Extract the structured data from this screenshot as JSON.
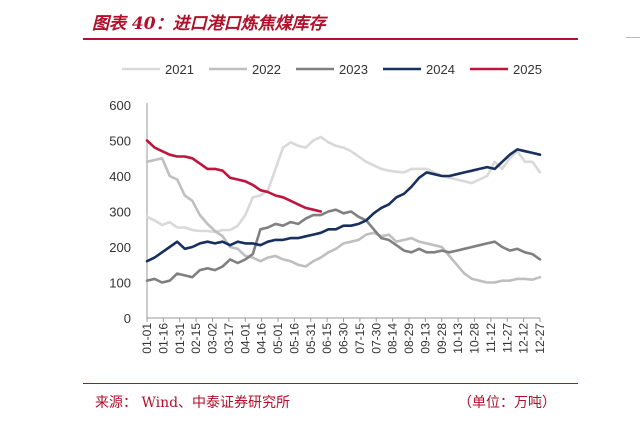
{
  "header": {
    "title": "图表 40：进口港口炼焦煤库存"
  },
  "footer": {
    "source": "来源：   Wind、中泰证券研究所",
    "unit": "（单位：万吨）"
  },
  "chart_data": {
    "type": "line",
    "ylim": [
      0,
      600
    ],
    "yticks": [
      0,
      100,
      200,
      300,
      400,
      500,
      600
    ],
    "xticks": [
      "01-01",
      "01-16",
      "01-31",
      "02-15",
      "03-02",
      "03-17",
      "04-01",
      "04-16",
      "05-01",
      "05-16",
      "05-31",
      "06-15",
      "06-30",
      "07-15",
      "07-30",
      "08-14",
      "08-29",
      "09-13",
      "09-28",
      "10-13",
      "10-28",
      "11-12",
      "11-27",
      "12-12",
      "12-27"
    ],
    "legend_position": "top",
    "series": [
      {
        "name": "2021",
        "color": "#d9d9d9",
        "x": [
          1,
          8,
          15,
          22,
          29,
          36,
          43,
          50,
          57,
          64,
          71,
          78,
          85,
          92,
          99,
          106,
          113,
          120,
          127,
          134,
          141,
          148,
          155,
          162,
          169,
          176,
          183,
          190,
          197,
          204,
          211,
          218,
          225,
          232,
          239,
          246,
          253,
          260,
          267,
          274,
          281,
          288,
          295,
          302,
          309,
          316,
          323,
          330,
          337,
          344,
          351,
          358,
          365
        ],
        "values": [
          285,
          275,
          262,
          270,
          255,
          255,
          248,
          245,
          245,
          242,
          248,
          248,
          260,
          290,
          340,
          345,
          360,
          420,
          480,
          495,
          485,
          480,
          500,
          510,
          495,
          485,
          480,
          470,
          455,
          440,
          430,
          420,
          415,
          412,
          410,
          420,
          420,
          420,
          410,
          400,
          395,
          390,
          385,
          380,
          390,
          400,
          440,
          420,
          450,
          470,
          440,
          440,
          410
        ]
      },
      {
        "name": "2022",
        "color": "#bfbfbf",
        "x": [
          1,
          8,
          15,
          22,
          29,
          36,
          43,
          50,
          57,
          64,
          71,
          78,
          85,
          92,
          99,
          106,
          113,
          120,
          127,
          134,
          141,
          148,
          155,
          162,
          169,
          176,
          183,
          190,
          197,
          204,
          211,
          218,
          225,
          232,
          239,
          246,
          253,
          260,
          267,
          274,
          281,
          288,
          295,
          302,
          309,
          316,
          323,
          330,
          337,
          344,
          351,
          358,
          365
        ],
        "values": [
          440,
          445,
          450,
          400,
          390,
          345,
          330,
          290,
          265,
          245,
          230,
          200,
          195,
          175,
          170,
          160,
          170,
          175,
          165,
          160,
          150,
          145,
          160,
          170,
          185,
          195,
          210,
          215,
          220,
          235,
          240,
          230,
          235,
          215,
          220,
          225,
          215,
          210,
          205,
          200,
          175,
          150,
          125,
          110,
          105,
          100,
          100,
          105,
          105,
          110,
          110,
          108,
          115
        ]
      },
      {
        "name": "2023",
        "color": "#808080",
        "x": [
          1,
          8,
          15,
          22,
          29,
          36,
          43,
          50,
          57,
          64,
          71,
          78,
          85,
          92,
          99,
          106,
          113,
          120,
          127,
          134,
          141,
          148,
          155,
          162,
          169,
          176,
          183,
          190,
          197,
          204,
          211,
          218,
          225,
          232,
          239,
          246,
          253,
          260,
          267,
          274,
          281,
          288,
          295,
          302,
          309,
          316,
          323,
          330,
          337,
          344,
          351,
          358,
          365
        ],
        "values": [
          105,
          110,
          100,
          105,
          125,
          120,
          115,
          135,
          140,
          135,
          145,
          165,
          155,
          165,
          180,
          250,
          255,
          265,
          260,
          270,
          265,
          280,
          290,
          290,
          300,
          305,
          295,
          300,
          285,
          275,
          250,
          225,
          220,
          205,
          190,
          185,
          195,
          185,
          185,
          190,
          185,
          190,
          195,
          200,
          205,
          210,
          215,
          200,
          190,
          195,
          185,
          180,
          165
        ]
      },
      {
        "name": "2024",
        "color": "#17305e",
        "x": [
          1,
          8,
          15,
          22,
          29,
          36,
          43,
          50,
          57,
          64,
          71,
          78,
          85,
          92,
          99,
          106,
          113,
          120,
          127,
          134,
          141,
          148,
          155,
          162,
          169,
          176,
          183,
          190,
          197,
          204,
          211,
          218,
          225,
          232,
          239,
          246,
          253,
          260,
          267,
          274,
          281,
          288,
          295,
          302,
          309,
          316,
          323,
          330,
          337,
          344,
          351,
          358,
          365
        ],
        "values": [
          160,
          170,
          185,
          200,
          215,
          195,
          200,
          210,
          215,
          210,
          215,
          205,
          215,
          210,
          210,
          205,
          215,
          220,
          220,
          225,
          225,
          230,
          235,
          240,
          250,
          250,
          260,
          260,
          265,
          275,
          295,
          310,
          320,
          340,
          350,
          370,
          395,
          410,
          405,
          400,
          400,
          405,
          410,
          415,
          420,
          425,
          420,
          440,
          460,
          475,
          470,
          465,
          460
        ]
      },
      {
        "name": "2025",
        "color": "#c0143c",
        "x": [
          1,
          8,
          15,
          22,
          29,
          36,
          43,
          50,
          57,
          64,
          71,
          78,
          85,
          92,
          99,
          106,
          113,
          120,
          127,
          134,
          141,
          148,
          155,
          162
        ],
        "values": [
          500,
          480,
          470,
          460,
          455,
          455,
          450,
          435,
          420,
          420,
          415,
          395,
          390,
          385,
          375,
          360,
          355,
          345,
          340,
          330,
          320,
          310,
          305,
          300
        ]
      }
    ]
  }
}
